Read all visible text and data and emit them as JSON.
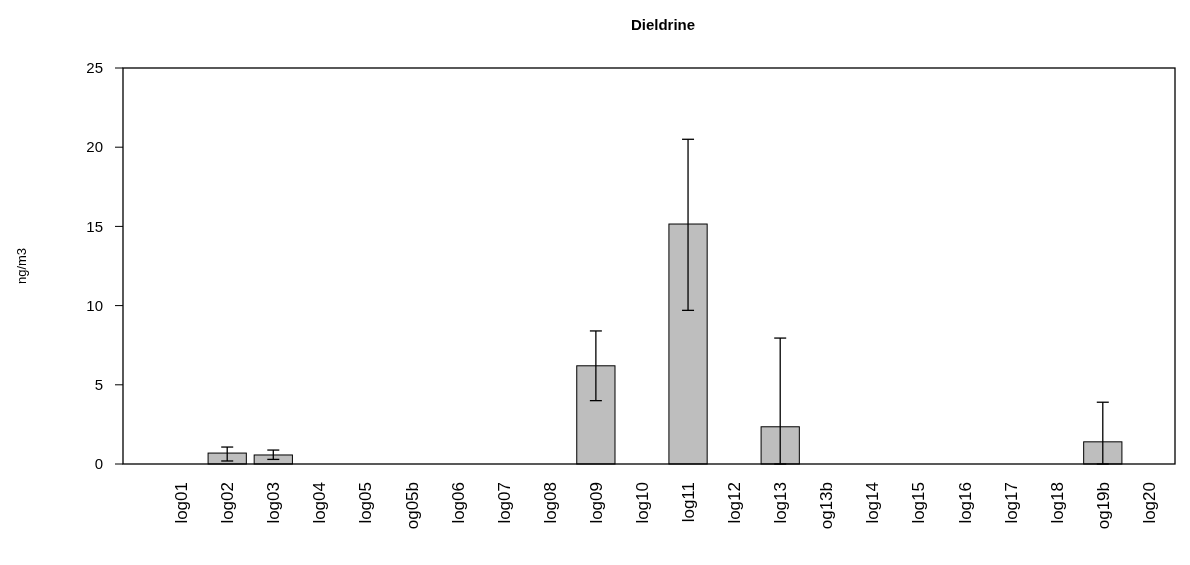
{
  "chart_data": {
    "type": "bar",
    "title": "Dieldrine",
    "ylabel": "ng/m3",
    "categories": [
      "log01",
      "log02",
      "log03",
      "log04",
      "log05",
      "og05b",
      "log06",
      "log07",
      "log08",
      "log09",
      "log10",
      "log11",
      "log12",
      "log13",
      "og13b",
      "log14",
      "log15",
      "log16",
      "log17",
      "log18",
      "og19b",
      "log20"
    ],
    "values": [
      0,
      0.69,
      0.57,
      0,
      0,
      0,
      0,
      0,
      0,
      6.2,
      0,
      15.15,
      0,
      2.35,
      0,
      0,
      0,
      0,
      0,
      0,
      1.4,
      0
    ],
    "errors": [
      null,
      [
        0.19,
        1.07
      ],
      [
        0.29,
        0.88
      ],
      null,
      null,
      null,
      null,
      null,
      null,
      [
        4.0,
        8.4
      ],
      null,
      [
        9.7,
        20.5
      ],
      null,
      [
        0,
        7.95
      ],
      null,
      null,
      null,
      null,
      null,
      null,
      [
        0,
        3.9
      ],
      null
    ],
    "color": "#bebebe",
    "ylim": [
      0,
      25
    ],
    "yticks": [
      0,
      5,
      10,
      15,
      20,
      25
    ],
    "grid": false
  }
}
